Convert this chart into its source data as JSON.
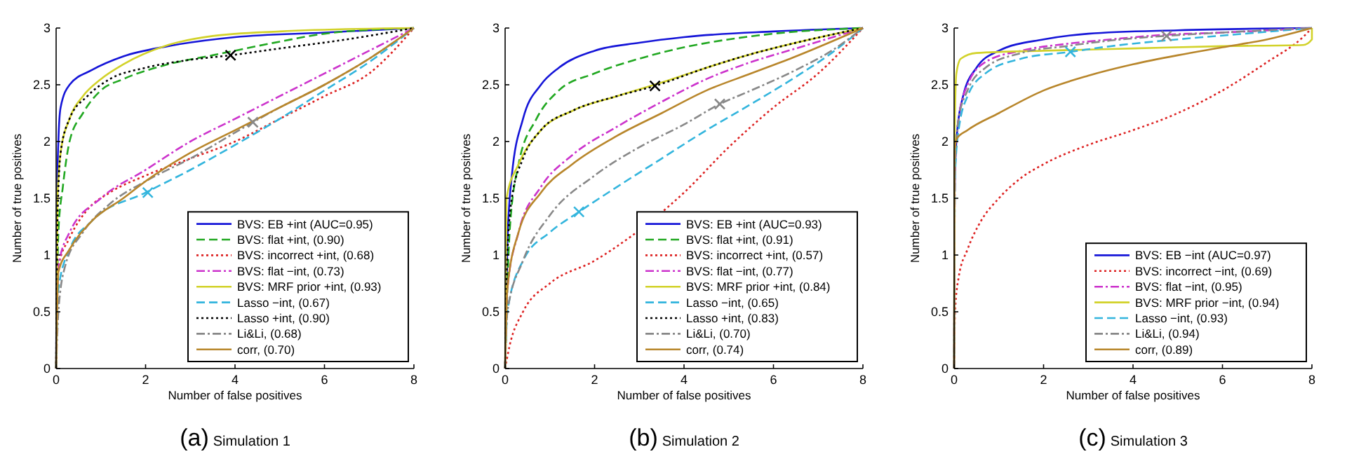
{
  "chart_data": [
    {
      "type": "line",
      "title": "(a) Simulation 1",
      "xlabel": "Number of false positives",
      "ylabel": "Number of true positives",
      "xlim": [
        0,
        8
      ],
      "xticks": [
        0,
        2,
        4,
        6,
        8
      ],
      "ylim": [
        0,
        3
      ],
      "yticks": [
        0,
        0.5,
        1,
        1.5,
        2,
        2.5,
        3
      ],
      "legend": "bottom right",
      "series": [
        {
          "name": "BVS: EB +int (AUC=0.95)",
          "color": "#1515d8",
          "line_style": "solid",
          "x": [
            0,
            0.02,
            0.05,
            0.1,
            0.3,
            0.8,
            1.5,
            2.5,
            4,
            6,
            8
          ],
          "values": [
            0,
            1.5,
            2,
            2.3,
            2.5,
            2.63,
            2.75,
            2.84,
            2.92,
            2.96,
            3
          ]
        },
        {
          "name": "BVS: flat +int, (0.90)",
          "color": "#22a822",
          "line_style": "dashed",
          "x": [
            0,
            0.05,
            0.15,
            0.3,
            0.6,
            1,
            1.5,
            2.5,
            3.5,
            5,
            6,
            8
          ],
          "values": [
            0,
            1.2,
            1.6,
            2,
            2.25,
            2.45,
            2.55,
            2.68,
            2.76,
            2.88,
            2.95,
            3
          ]
        },
        {
          "name": "BVS: incorrect +int, (0.68)",
          "color": "#dd2222",
          "line_style": "dotted",
          "x": [
            0,
            0.05,
            0.3,
            0.7,
            1.2,
            2,
            3,
            4,
            5,
            6,
            7,
            8
          ],
          "values": [
            0,
            0.9,
            1.15,
            1.4,
            1.55,
            1.7,
            1.85,
            2,
            2.2,
            2.4,
            2.6,
            3
          ]
        },
        {
          "name": "BVS: flat −int, (0.73)",
          "color": "#cc33cc",
          "line_style": "dashdot",
          "x": [
            0,
            0.05,
            0.3,
            1,
            2,
            3,
            4,
            5,
            6,
            7,
            8
          ],
          "values": [
            0,
            0.9,
            1.2,
            1.5,
            1.75,
            2,
            2.2,
            2.4,
            2.6,
            2.8,
            3
          ]
        },
        {
          "name": "BVS: MRF prior +int, (0.93)",
          "color": "#d2d22a",
          "line_style": "solid",
          "x": [
            0,
            0.03,
            0.1,
            0.3,
            0.6,
            1,
            1.5,
            2.5,
            3.5,
            5,
            8
          ],
          "values": [
            0,
            1.5,
            1.9,
            2.2,
            2.4,
            2.55,
            2.68,
            2.85,
            2.93,
            2.97,
            3
          ]
        },
        {
          "name": "Lasso −int, (0.67)",
          "color": "#33b5dd",
          "line_style": "dashed",
          "x": [
            0,
            0.05,
            0.3,
            0.8,
            2,
            3,
            4,
            5,
            6,
            7,
            8
          ],
          "values": [
            0,
            0.7,
            1.05,
            1.3,
            1.55,
            1.75,
            1.97,
            2.2,
            2.45,
            2.7,
            3
          ]
        },
        {
          "name": "Lasso +int, (0.90)",
          "color": "#000000",
          "line_style": "dotted",
          "x": [
            0,
            0.03,
            0.1,
            0.3,
            0.7,
            1.2,
            2,
            3,
            3.9,
            5,
            6.5,
            8
          ],
          "values": [
            0,
            1.3,
            1.9,
            2.2,
            2.4,
            2.55,
            2.65,
            2.72,
            2.76,
            2.82,
            2.9,
            3
          ]
        },
        {
          "name": "Li&Li, (0.68)",
          "color": "#888888",
          "line_style": "dashdot",
          "x": [
            0,
            0.05,
            0.2,
            0.6,
            1.2,
            2,
            3,
            4.4,
            5,
            6,
            7,
            8
          ],
          "values": [
            0,
            0.5,
            0.9,
            1.2,
            1.45,
            1.65,
            1.85,
            2.17,
            2.3,
            2.5,
            2.73,
            3
          ]
        },
        {
          "name": "corr, (0.70)",
          "color": "#b8862b",
          "line_style": "solid",
          "x": [
            0,
            0.05,
            0.3,
            0.8,
            1.5,
            2,
            3,
            4,
            5,
            6,
            7,
            8
          ],
          "values": [
            0,
            0.85,
            1.05,
            1.3,
            1.5,
            1.65,
            1.9,
            2.1,
            2.3,
            2.5,
            2.73,
            3
          ]
        },
        {
          "type": "scatter",
          "marker": "cross",
          "color": "#33b5dd",
          "x": [
            2.05
          ],
          "values": [
            1.55
          ]
        },
        {
          "type": "scatter",
          "marker": "cross",
          "color": "#000000",
          "x": [
            3.9
          ],
          "values": [
            2.76
          ]
        },
        {
          "type": "scatter",
          "marker": "cross",
          "color": "#888888",
          "x": [
            4.4
          ],
          "values": [
            2.17
          ]
        }
      ]
    },
    {
      "type": "line",
      "title": "(b) Simulation 2",
      "xlabel": "Number of false positives",
      "ylabel": "Number of true positives",
      "xlim": [
        0,
        8
      ],
      "xticks": [
        0,
        2,
        4,
        6,
        8
      ],
      "ylim": [
        0,
        3
      ],
      "yticks": [
        0,
        0.5,
        1,
        1.5,
        2,
        2.5,
        3
      ],
      "legend": "bottom right",
      "series": [
        {
          "name": "BVS: EB +int (AUC=0.93)",
          "color": "#1515d8",
          "line_style": "solid",
          "x": [
            0,
            0.05,
            0.15,
            0.4,
            0.8,
            1.2,
            2,
            3,
            4,
            6,
            8
          ],
          "values": [
            0,
            1.1,
            1.7,
            2.2,
            2.5,
            2.65,
            2.8,
            2.87,
            2.92,
            2.97,
            3
          ]
        },
        {
          "name": "BVS: flat +int, (0.91)",
          "color": "#22a822",
          "line_style": "dashed",
          "x": [
            0,
            0.1,
            0.3,
            0.7,
            1.2,
            2,
            3,
            4,
            5,
            6,
            8
          ],
          "values": [
            0,
            1.2,
            1.8,
            2.2,
            2.45,
            2.6,
            2.73,
            2.83,
            2.9,
            2.95,
            3
          ]
        },
        {
          "name": "BVS: incorrect +int, (0.57)",
          "color": "#dd2222",
          "line_style": "dotted",
          "x": [
            0,
            0.1,
            0.4,
            1,
            2,
            2.8,
            4,
            5,
            6,
            7,
            8
          ],
          "values": [
            0,
            0.2,
            0.5,
            0.75,
            0.95,
            1.16,
            1.55,
            1.95,
            2.3,
            2.6,
            3
          ]
        },
        {
          "name": "BVS: flat −int, (0.77)",
          "color": "#cc33cc",
          "line_style": "dashdot",
          "x": [
            0,
            0.05,
            0.3,
            0.8,
            1.5,
            2.5,
            3.5,
            4.5,
            5.5,
            6.5,
            8
          ],
          "values": [
            0,
            0.7,
            1.2,
            1.6,
            1.88,
            2.13,
            2.35,
            2.55,
            2.7,
            2.82,
            3
          ]
        },
        {
          "name": "BVS: MRF prior +int, (0.84)",
          "color": "#d2d22a",
          "line_style": "solid",
          "x": [
            0,
            0.03,
            0.3,
            0.8,
            1.5,
            2.5,
            3.5,
            4.5,
            5.5,
            6.5,
            8
          ],
          "values": [
            0,
            1.5,
            1.8,
            2.1,
            2.27,
            2.4,
            2.52,
            2.65,
            2.77,
            2.87,
            3
          ]
        },
        {
          "name": "Lasso −int, (0.65)",
          "color": "#33b5dd",
          "line_style": "dashed",
          "x": [
            0,
            0.05,
            0.4,
            1,
            1.65,
            2.5,
            3.5,
            4.5,
            5.5,
            6.5,
            7.3,
            8
          ],
          "values": [
            0,
            0.5,
            0.95,
            1.2,
            1.38,
            1.6,
            1.85,
            2.1,
            2.33,
            2.57,
            2.78,
            3
          ]
        },
        {
          "name": "Lasso +int, (0.83)",
          "color": "#000000",
          "line_style": "dotted",
          "x": [
            0,
            0.05,
            0.15,
            0.4,
            0.8,
            1.5,
            2.5,
            3.35,
            4.5,
            5.5,
            6.5,
            8
          ],
          "values": [
            0,
            1,
            1.5,
            1.85,
            2.1,
            2.27,
            2.4,
            2.49,
            2.65,
            2.77,
            2.87,
            3
          ]
        },
        {
          "name": "Li&Li, (0.70)",
          "color": "#888888",
          "line_style": "dashdot",
          "x": [
            0,
            0.05,
            0.4,
            1,
            2,
            3,
            4,
            4.8,
            5.5,
            6.5,
            7.3,
            8
          ],
          "values": [
            0,
            0.5,
            0.95,
            1.35,
            1.7,
            1.95,
            2.15,
            2.33,
            2.45,
            2.63,
            2.8,
            3
          ]
        },
        {
          "name": "corr, (0.74)",
          "color": "#b8862b",
          "line_style": "solid",
          "x": [
            0,
            0.05,
            0.3,
            0.8,
            1.5,
            2.5,
            3.5,
            4.5,
            5.5,
            6.5,
            8
          ],
          "values": [
            0,
            0.7,
            1.2,
            1.55,
            1.8,
            2.05,
            2.25,
            2.45,
            2.6,
            2.75,
            3
          ]
        },
        {
          "type": "scatter",
          "marker": "cross",
          "color": "#33b5dd",
          "x": [
            1.65
          ],
          "values": [
            1.38
          ]
        },
        {
          "type": "scatter",
          "marker": "cross",
          "color": "#000000",
          "x": [
            3.35
          ],
          "values": [
            2.49
          ]
        },
        {
          "type": "scatter",
          "marker": "cross",
          "color": "#888888",
          "x": [
            4.8
          ],
          "values": [
            2.33
          ]
        }
      ]
    },
    {
      "type": "line",
      "title": "(c) Simulation 3",
      "xlabel": "Number of false positives",
      "ylabel": "Number of true positives",
      "xlim": [
        0,
        8
      ],
      "xticks": [
        0,
        2,
        4,
        6,
        8
      ],
      "ylim": [
        0,
        3
      ],
      "yticks": [
        0,
        0.5,
        1,
        1.5,
        2,
        2.5,
        3
      ],
      "legend": "bottom right",
      "series": [
        {
          "name": "BVS: EB −int (AUC=0.97)",
          "color": "#1515d8",
          "line_style": "solid",
          "x": [
            0,
            0.01,
            0.05,
            0.2,
            0.5,
            1,
            2,
            3,
            5,
            8
          ],
          "values": [
            0,
            1.5,
            2,
            2.4,
            2.65,
            2.8,
            2.9,
            2.95,
            2.98,
            3
          ]
        },
        {
          "name": "BVS: incorrect −int, (0.69)",
          "color": "#dd2222",
          "line_style": "dotted",
          "x": [
            0,
            0.02,
            0.1,
            0.3,
            0.6,
            1,
            1.5,
            2,
            3,
            4,
            5,
            6,
            7,
            7.8,
            8
          ],
          "values": [
            0,
            0.5,
            0.8,
            1.05,
            1.3,
            1.5,
            1.68,
            1.8,
            1.97,
            2.1,
            2.25,
            2.45,
            2.7,
            2.92,
            3
          ]
        },
        {
          "name": "BVS: flat −int, (0.95)",
          "color": "#cc33cc",
          "line_style": "dashdot",
          "x": [
            0,
            0.02,
            0.1,
            0.3,
            0.7,
            1.5,
            2.5,
            3.5,
            4.7,
            6,
            8
          ],
          "values": [
            0,
            1.8,
            2.2,
            2.5,
            2.7,
            2.8,
            2.86,
            2.9,
            2.94,
            2.96,
            3
          ]
        },
        {
          "name": "BVS: MRF prior −int, (0.94)",
          "color": "#d2d22a",
          "line_style": "solid",
          "x": [
            0,
            0.01,
            0.05,
            0.15,
            0.5,
            2,
            4,
            6,
            7.8,
            8,
            8
          ],
          "values": [
            0,
            2,
            2.6,
            2.73,
            2.78,
            2.8,
            2.82,
            2.84,
            2.85,
            2.9,
            3
          ]
        },
        {
          "name": "Lasso −int, (0.93)",
          "color": "#33b5dd",
          "line_style": "dashed",
          "x": [
            0,
            0.02,
            0.1,
            0.3,
            0.7,
            1.5,
            2.6,
            3.5,
            5,
            6.5,
            8
          ],
          "values": [
            0,
            1.7,
            2.1,
            2.4,
            2.6,
            2.73,
            2.79,
            2.84,
            2.9,
            2.95,
            3
          ]
        },
        {
          "name": "Li&Li, (0.94)",
          "color": "#888888",
          "line_style": "dashdot",
          "x": [
            0,
            0.02,
            0.1,
            0.3,
            0.7,
            1.5,
            2.5,
            3.5,
            4.7,
            6,
            8
          ],
          "values": [
            0,
            1.8,
            2.2,
            2.45,
            2.65,
            2.78,
            2.84,
            2.89,
            2.93,
            2.96,
            3
          ]
        },
        {
          "name": "corr, (0.89)",
          "color": "#b8862b",
          "line_style": "solid",
          "x": [
            0,
            0.01,
            0.05,
            0.3,
            1,
            2,
            3,
            4,
            5,
            6,
            7,
            8
          ],
          "values": [
            0,
            1.9,
            2.02,
            2.1,
            2.25,
            2.45,
            2.58,
            2.68,
            2.76,
            2.83,
            2.9,
            3
          ]
        },
        {
          "type": "scatter",
          "marker": "cross",
          "color": "#33b5dd",
          "x": [
            2.6
          ],
          "values": [
            2.79
          ]
        },
        {
          "type": "scatter",
          "marker": "cross",
          "color": "#888888",
          "x": [
            4.75
          ],
          "values": [
            2.93
          ]
        }
      ]
    }
  ]
}
